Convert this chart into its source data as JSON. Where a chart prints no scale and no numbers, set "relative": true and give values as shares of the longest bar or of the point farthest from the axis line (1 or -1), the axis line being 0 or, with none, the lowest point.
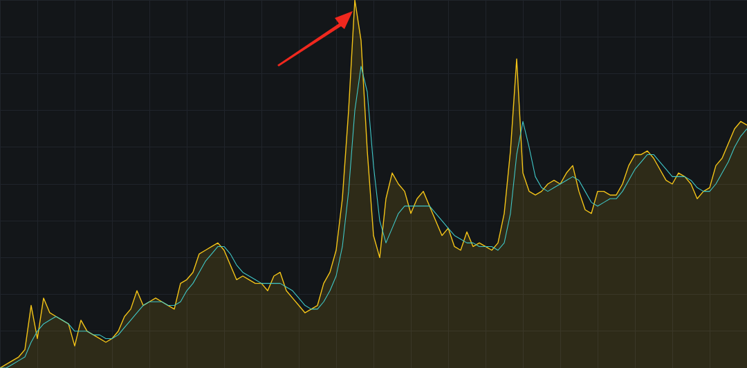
{
  "chart_data": {
    "type": "area",
    "relative": true,
    "grid": true,
    "legend": false,
    "marker": "none",
    "categories": [
      null,
      null,
      null,
      null,
      null,
      null,
      null,
      null,
      null,
      null,
      null,
      null,
      null,
      null,
      null,
      null,
      null,
      null,
      null,
      null,
      null,
      null,
      null,
      null,
      null,
      null,
      null,
      null,
      null,
      null,
      null,
      null,
      null,
      null,
      null,
      null,
      null,
      null,
      null,
      null,
      null,
      null,
      null,
      null,
      null,
      null,
      null,
      null,
      null,
      null,
      null,
      null,
      null,
      null,
      null,
      null,
      null,
      null,
      null,
      null,
      null,
      null,
      null,
      null,
      null,
      null,
      null,
      null,
      null,
      null,
      null,
      null,
      null,
      null,
      null,
      null,
      null,
      null,
      null,
      null,
      null,
      null,
      null,
      null,
      null,
      null,
      null,
      null,
      null,
      null,
      null,
      null,
      null,
      null,
      null,
      null,
      null,
      null,
      null,
      null,
      null,
      null,
      null,
      null,
      null,
      null,
      null,
      null,
      null,
      null,
      null,
      null,
      null,
      null,
      null,
      null,
      null,
      null,
      null,
      null,
      null
    ],
    "series": [
      {
        "color": "#f5c518",
        "values": [
          0,
          0.01,
          0.02,
          0.03,
          0.05,
          0.17,
          0.08,
          0.19,
          0.15,
          0.14,
          0.13,
          0.12,
          0.06,
          0.13,
          0.1,
          0.09,
          0.08,
          0.07,
          0.08,
          0.1,
          0.14,
          0.16,
          0.21,
          0.17,
          0.18,
          0.19,
          0.18,
          0.17,
          0.16,
          0.23,
          0.24,
          0.26,
          0.31,
          0.32,
          0.33,
          0.34,
          0.32,
          0.28,
          0.24,
          0.25,
          0.24,
          0.23,
          0.23,
          0.21,
          0.25,
          0.26,
          0.21,
          0.19,
          0.17,
          0.15,
          0.16,
          0.17,
          0.23,
          0.26,
          0.32,
          0.46,
          0.7,
          1,
          0.89,
          0.59,
          0.36,
          0.3,
          0.46,
          0.53,
          0.5,
          0.48,
          0.42,
          0.46,
          0.48,
          0.44,
          0.4,
          0.36,
          0.38,
          0.33,
          0.32,
          0.37,
          0.33,
          0.34,
          0.33,
          0.32,
          0.34,
          0.42,
          0.59,
          0.84,
          0.53,
          0.48,
          0.47,
          0.48,
          0.5,
          0.51,
          0.5,
          0.53,
          0.55,
          0.48,
          0.43,
          0.42,
          0.48,
          0.48,
          0.47,
          0.47,
          0.5,
          0.55,
          0.58,
          0.58,
          0.59,
          0.57,
          0.54,
          0.51,
          0.5,
          0.53,
          0.52,
          0.5,
          0.46,
          0.48,
          0.49,
          0.55,
          0.57,
          0.61,
          0.65,
          0.67,
          0.66
        ]
      },
      {
        "type": "line",
        "color": "#40c8c8",
        "values": [
          0,
          0,
          0.01,
          0.02,
          0.03,
          0.07,
          0.1,
          0.12,
          0.13,
          0.14,
          0.13,
          0.12,
          0.1,
          0.1,
          0.1,
          0.09,
          0.09,
          0.08,
          0.08,
          0.09,
          0.11,
          0.13,
          0.15,
          0.17,
          0.18,
          0.18,
          0.18,
          0.17,
          0.17,
          0.18,
          0.21,
          0.23,
          0.26,
          0.29,
          0.31,
          0.33,
          0.33,
          0.31,
          0.28,
          0.26,
          0.25,
          0.24,
          0.23,
          0.23,
          0.23,
          0.23,
          0.22,
          0.21,
          0.19,
          0.17,
          0.16,
          0.16,
          0.18,
          0.21,
          0.25,
          0.33,
          0.48,
          0.7,
          0.82,
          0.75,
          0.55,
          0.4,
          0.34,
          0.38,
          0.42,
          0.44,
          0.44,
          0.44,
          0.44,
          0.44,
          0.42,
          0.4,
          0.38,
          0.36,
          0.35,
          0.34,
          0.34,
          0.33,
          0.33,
          0.33,
          0.32,
          0.34,
          0.42,
          0.58,
          0.67,
          0.6,
          0.52,
          0.49,
          0.48,
          0.49,
          0.5,
          0.51,
          0.52,
          0.51,
          0.48,
          0.45,
          0.44,
          0.45,
          0.46,
          0.46,
          0.48,
          0.51,
          0.54,
          0.56,
          0.58,
          0.58,
          0.56,
          0.54,
          0.52,
          0.52,
          0.52,
          0.51,
          0.49,
          0.48,
          0.48,
          0.5,
          0.53,
          0.56,
          0.6,
          0.63,
          0.65
        ]
      }
    ]
  }
}
